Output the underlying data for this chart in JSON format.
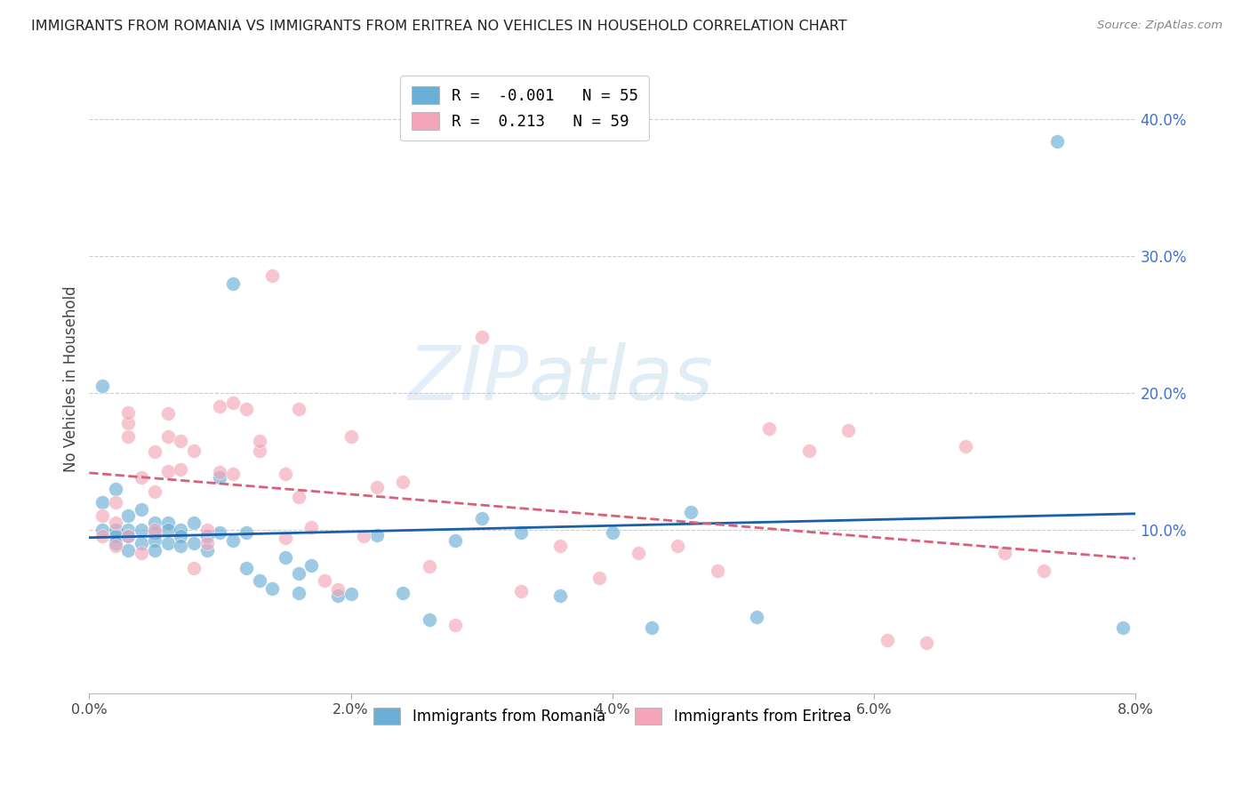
{
  "title": "IMMIGRANTS FROM ROMANIA VS IMMIGRANTS FROM ERITREA NO VEHICLES IN HOUSEHOLD CORRELATION CHART",
  "source": "Source: ZipAtlas.com",
  "ylabel": "No Vehicles in Household",
  "xlim": [
    0.0,
    0.08
  ],
  "ylim": [
    -0.02,
    0.44
  ],
  "xticks": [
    0.0,
    0.02,
    0.04,
    0.06,
    0.08
  ],
  "xtick_labels": [
    "0.0%",
    "2.0%",
    "4.0%",
    "6.0%",
    "8.0%"
  ],
  "yticks_right": [
    0.1,
    0.2,
    0.3,
    0.4
  ],
  "ytick_right_labels": [
    "10.0%",
    "20.0%",
    "30.0%",
    "40.0%"
  ],
  "romania_color": "#6baed6",
  "eritrea_color": "#f4a6b8",
  "romania_R": -0.001,
  "romania_N": 55,
  "eritrea_R": 0.213,
  "eritrea_N": 59,
  "romania_line_color": "#1a5fa8",
  "eritrea_line_color": "#d9607a",
  "watermark_zip": "ZIP",
  "watermark_atlas": "atlas",
  "romania_x": [
    0.001,
    0.001,
    0.001,
    0.002,
    0.002,
    0.002,
    0.002,
    0.003,
    0.003,
    0.003,
    0.003,
    0.004,
    0.004,
    0.004,
    0.005,
    0.005,
    0.005,
    0.005,
    0.006,
    0.006,
    0.006,
    0.007,
    0.007,
    0.007,
    0.008,
    0.008,
    0.009,
    0.009,
    0.01,
    0.01,
    0.011,
    0.011,
    0.012,
    0.012,
    0.013,
    0.014,
    0.015,
    0.016,
    0.016,
    0.017,
    0.019,
    0.02,
    0.022,
    0.024,
    0.026,
    0.028,
    0.03,
    0.033,
    0.036,
    0.04,
    0.043,
    0.046,
    0.051,
    0.074,
    0.079
  ],
  "romania_y": [
    0.205,
    0.12,
    0.1,
    0.13,
    0.1,
    0.095,
    0.09,
    0.11,
    0.1,
    0.095,
    0.085,
    0.115,
    0.1,
    0.09,
    0.105,
    0.098,
    0.092,
    0.085,
    0.105,
    0.1,
    0.09,
    0.1,
    0.095,
    0.088,
    0.105,
    0.09,
    0.095,
    0.085,
    0.138,
    0.098,
    0.28,
    0.092,
    0.098,
    0.072,
    0.063,
    0.057,
    0.08,
    0.054,
    0.068,
    0.074,
    0.052,
    0.053,
    0.096,
    0.054,
    0.034,
    0.092,
    0.108,
    0.098,
    0.052,
    0.098,
    0.028,
    0.113,
    0.036,
    0.384,
    0.028
  ],
  "eritrea_x": [
    0.001,
    0.001,
    0.002,
    0.002,
    0.002,
    0.003,
    0.003,
    0.003,
    0.003,
    0.004,
    0.004,
    0.005,
    0.005,
    0.005,
    0.006,
    0.006,
    0.006,
    0.007,
    0.007,
    0.008,
    0.008,
    0.009,
    0.009,
    0.01,
    0.01,
    0.011,
    0.011,
    0.012,
    0.013,
    0.013,
    0.014,
    0.015,
    0.015,
    0.016,
    0.016,
    0.017,
    0.018,
    0.019,
    0.02,
    0.021,
    0.022,
    0.024,
    0.026,
    0.028,
    0.03,
    0.033,
    0.036,
    0.039,
    0.042,
    0.045,
    0.048,
    0.052,
    0.055,
    0.058,
    0.061,
    0.064,
    0.067,
    0.07,
    0.073
  ],
  "eritrea_y": [
    0.11,
    0.095,
    0.088,
    0.12,
    0.105,
    0.168,
    0.178,
    0.186,
    0.095,
    0.083,
    0.138,
    0.128,
    0.157,
    0.1,
    0.143,
    0.185,
    0.168,
    0.144,
    0.165,
    0.072,
    0.158,
    0.09,
    0.1,
    0.19,
    0.142,
    0.141,
    0.193,
    0.188,
    0.158,
    0.165,
    0.286,
    0.094,
    0.141,
    0.188,
    0.124,
    0.102,
    0.063,
    0.056,
    0.168,
    0.095,
    0.131,
    0.135,
    0.073,
    0.03,
    0.241,
    0.055,
    0.088,
    0.065,
    0.083,
    0.088,
    0.07,
    0.174,
    0.158,
    0.173,
    0.019,
    0.017,
    0.161,
    0.083,
    0.07
  ]
}
